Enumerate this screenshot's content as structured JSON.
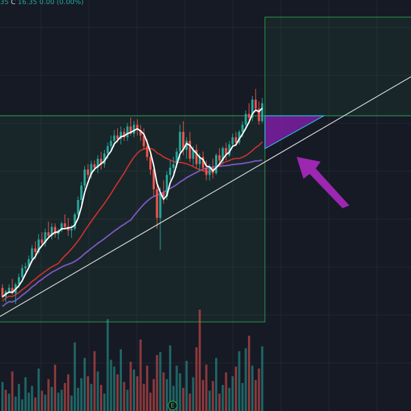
{
  "header": {
    "open_tail": "35",
    "close_label": "C",
    "close_value": "16.35",
    "change": "0.00",
    "change_pct": "(0.00%)"
  },
  "earnings_badge": {
    "label": "E",
    "icon": "earnings-marker"
  },
  "colors": {
    "background": "#161a25",
    "grid": "#232733",
    "up": "#26a69a",
    "down": "#ef5350",
    "ma_fast": "#ffffff",
    "ma_mid": "#d32f2f",
    "ma_slow": "#7e57c2",
    "range_box": "#2fbf57",
    "trendline": "#e0e0e0",
    "triangle": "#7b1fa2",
    "arrow": "#9c27b0"
  },
  "chart_data": {
    "type": "candlestick",
    "candles": [
      [
        19,
        21,
        13,
        14
      ],
      [
        14,
        18,
        11,
        17
      ],
      [
        17,
        21,
        16,
        19
      ],
      [
        19,
        24,
        15,
        16
      ],
      [
        16,
        22,
        10,
        21
      ],
      [
        21,
        27,
        19,
        25
      ],
      [
        25,
        32,
        24,
        30
      ],
      [
        30,
        33,
        28,
        31
      ],
      [
        31,
        37,
        30,
        35
      ],
      [
        35,
        43,
        33,
        41
      ],
      [
        41,
        45,
        35,
        39
      ],
      [
        39,
        49,
        38,
        46
      ],
      [
        46,
        50,
        43,
        44
      ],
      [
        44,
        52,
        42,
        50
      ],
      [
        50,
        56,
        47,
        48
      ],
      [
        48,
        55,
        46,
        53
      ],
      [
        53,
        55,
        47,
        49
      ],
      [
        49,
        52,
        46,
        51
      ],
      [
        51,
        56,
        50,
        55
      ],
      [
        55,
        60,
        52,
        53
      ],
      [
        53,
        58,
        48,
        51
      ],
      [
        51,
        54,
        47,
        52
      ],
      [
        52,
        61,
        51,
        60
      ],
      [
        60,
        70,
        59,
        68
      ],
      [
        68,
        78,
        66,
        76
      ],
      [
        76,
        87,
        74,
        85
      ],
      [
        85,
        88,
        80,
        82
      ],
      [
        82,
        90,
        80,
        88
      ],
      [
        88,
        90,
        84,
        86
      ],
      [
        86,
        93,
        83,
        91
      ],
      [
        91,
        95,
        85,
        88
      ],
      [
        88,
        96,
        86,
        94
      ],
      [
        94,
        100,
        91,
        98
      ],
      [
        98,
        104,
        95,
        101
      ],
      [
        101,
        107,
        98,
        104
      ],
      [
        104,
        108,
        100,
        102
      ],
      [
        102,
        109,
        99,
        106
      ],
      [
        106,
        108,
        101,
        103
      ],
      [
        103,
        111,
        101,
        109
      ],
      [
        109,
        114,
        104,
        105
      ],
      [
        105,
        112,
        103,
        110
      ],
      [
        110,
        113,
        104,
        107
      ],
      [
        107,
        110,
        101,
        104
      ],
      [
        104,
        108,
        96,
        98
      ],
      [
        98,
        102,
        90,
        92
      ],
      [
        92,
        94,
        82,
        85
      ],
      [
        85,
        88,
        70,
        74
      ],
      [
        74,
        76,
        52,
        58
      ],
      [
        58,
        75,
        40,
        72
      ],
      [
        72,
        79,
        66,
        70
      ],
      [
        70,
        84,
        68,
        82
      ],
      [
        82,
        90,
        79,
        86
      ],
      [
        86,
        92,
        83,
        88
      ],
      [
        88,
        97,
        86,
        95
      ],
      [
        95,
        110,
        90,
        106
      ],
      [
        106,
        112,
        93,
        96
      ],
      [
        96,
        103,
        91,
        101
      ],
      [
        101,
        106,
        89,
        91
      ],
      [
        91,
        98,
        87,
        96
      ],
      [
        96,
        99,
        86,
        88
      ],
      [
        88,
        94,
        84,
        92
      ],
      [
        92,
        95,
        84,
        86
      ],
      [
        86,
        90,
        79,
        82
      ],
      [
        82,
        88,
        79,
        86
      ],
      [
        86,
        91,
        80,
        83
      ],
      [
        83,
        94,
        82,
        93
      ],
      [
        93,
        97,
        87,
        90
      ],
      [
        90,
        98,
        88,
        97
      ],
      [
        97,
        100,
        90,
        93
      ],
      [
        93,
        101,
        92,
        99
      ],
      [
        99,
        105,
        97,
        103
      ],
      [
        103,
        106,
        98,
        100
      ],
      [
        100,
        107,
        99,
        106
      ],
      [
        106,
        112,
        103,
        110
      ],
      [
        110,
        118,
        107,
        116
      ],
      [
        116,
        122,
        112,
        114
      ],
      [
        114,
        126,
        112,
        124
      ],
      [
        124,
        130,
        117,
        119
      ],
      [
        119,
        123,
        110,
        112
      ],
      [
        112,
        125,
        111,
        122
      ]
    ],
    "volume": [
      30,
      22,
      18,
      41,
      15,
      28,
      12,
      35,
      19,
      26,
      14,
      44,
      21,
      17,
      33,
      25,
      48,
      19,
      22,
      29,
      38,
      16,
      71,
      24,
      34,
      55,
      36,
      28,
      62,
      41,
      27,
      18,
      95,
      53,
      46,
      38,
      64,
      30,
      22,
      51,
      43,
      36,
      74,
      28,
      47,
      19,
      33,
      58,
      61,
      40,
      33,
      68,
      26,
      47,
      39,
      24,
      52,
      18,
      35,
      66,
      105,
      32,
      48,
      21,
      31,
      55,
      18,
      27,
      40,
      24,
      36,
      46,
      62,
      29,
      65,
      78,
      47,
      32,
      44,
      67
    ],
    "volume_up": [
      true,
      false,
      true,
      false,
      true,
      true,
      true,
      true,
      true,
      true,
      false,
      true,
      false,
      true,
      false,
      true,
      false,
      true,
      true,
      false,
      false,
      true,
      true,
      true,
      true,
      true,
      false,
      true,
      false,
      true,
      false,
      true,
      true,
      true,
      true,
      false,
      true,
      false,
      true,
      false,
      true,
      false,
      false,
      false,
      false,
      false,
      false,
      false,
      true,
      false,
      true,
      true,
      true,
      true,
      true,
      false,
      true,
      false,
      true,
      false,
      false,
      false,
      false,
      true,
      false,
      true,
      false,
      true,
      false,
      true,
      true,
      false,
      true,
      true,
      true,
      false,
      true,
      false,
      false,
      true
    ],
    "price_range": [
      0,
      170
    ],
    "range_box": {
      "low": 0,
      "high": 115
    },
    "target_box": {
      "low": 115,
      "high": 170
    }
  }
}
